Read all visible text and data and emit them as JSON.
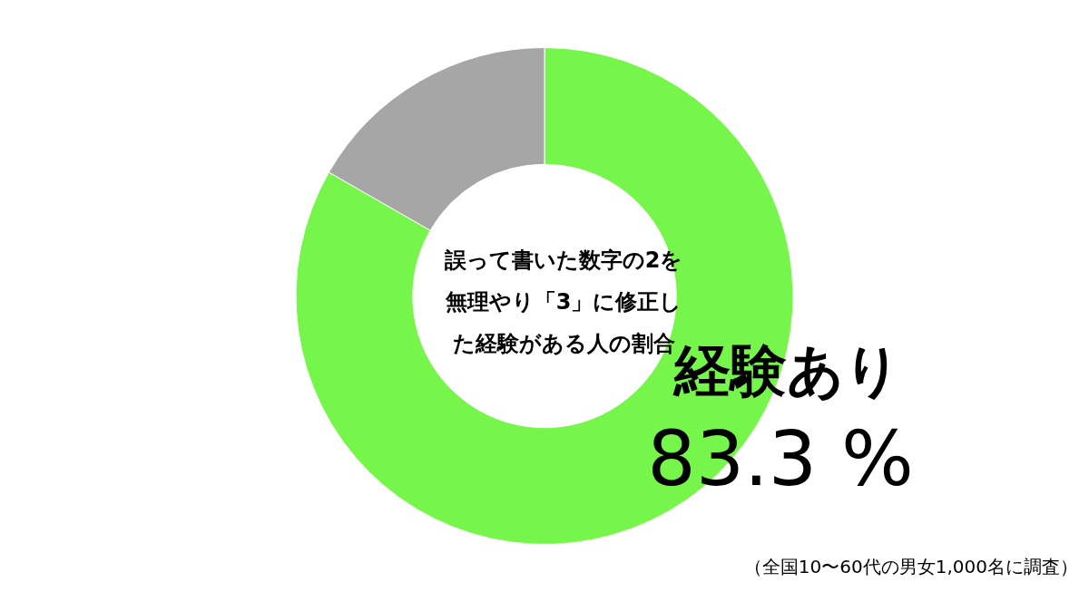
{
  "chart_data": {
    "type": "donut",
    "title": "誤って書いた数字の2を無理やり「3」に修正した経験がある人の割合",
    "categories": [
      "経験あり",
      null
    ],
    "values": [
      83.3,
      16.7
    ],
    "colors": [
      "#76f54b",
      "#a6a6a6"
    ],
    "value_labels": [
      "83.3 %",
      null
    ],
    "annotations": [
      "（全国10〜60代の男女1,000名に調査）"
    ]
  }
}
